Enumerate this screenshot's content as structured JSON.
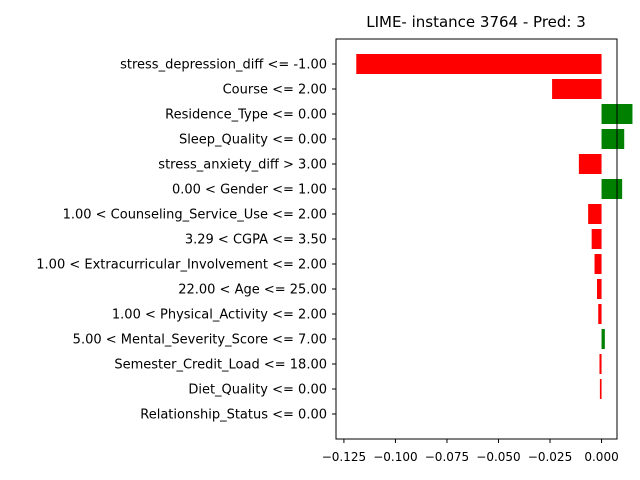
{
  "chart_data": {
    "type": "bar",
    "orientation": "horizontal",
    "title": "LIME- instance 3764 - Pred: 3",
    "xlabel": "",
    "ylabel": "",
    "xlim": [
      -0.125,
      0.0075
    ],
    "xticks": [
      -0.125,
      -0.1,
      -0.075,
      -0.05,
      -0.025,
      0.0
    ],
    "xtick_labels": [
      "−0.125",
      "−0.100",
      "−0.075",
      "−0.050",
      "−0.025",
      "0.000"
    ],
    "categories": [
      "stress_depression_diff <= -1.00",
      "Course <= 2.00",
      "Residence_Type <= 0.00",
      "Sleep_Quality <= 0.00",
      "stress_anxiety_diff > 3.00",
      "0.00 < Gender <= 1.00",
      "1.00 < Counseling_Service_Use <= 2.00",
      "3.29 < CGPA <= 3.50",
      "1.00 < Extracurricular_Involvement <= 2.00",
      "22.00 < Age <= 25.00",
      "1.00 < Physical_Activity <= 2.00",
      "5.00 < Mental_Severity_Score <= 7.00",
      "Semester_Credit_Load <= 18.00",
      "Diet_Quality <= 0.00",
      "Relationship_Status <= 0.00"
    ],
    "values": [
      -0.119,
      -0.024,
      0.015,
      0.011,
      -0.011,
      0.01,
      -0.0065,
      -0.0048,
      -0.0034,
      -0.0022,
      -0.0016,
      0.0016,
      -0.001,
      -0.0008,
      0.0
    ],
    "colors": {
      "positive": "#008000",
      "negative": "#ff0000"
    },
    "grid": false
  }
}
